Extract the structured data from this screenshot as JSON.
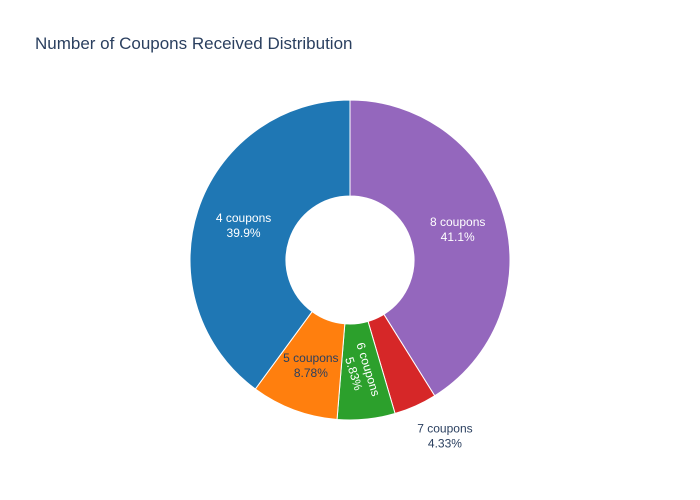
{
  "chart_data": {
    "type": "pie",
    "hole": 0.4,
    "title": "Number of Coupons Received Distribution",
    "direction": "clockwise",
    "slices": [
      {
        "label": "8 coupons",
        "value": 41.1,
        "pct_text": "41.1%",
        "color": "#9467bd",
        "label_position": "inside"
      },
      {
        "label": "7 coupons",
        "value": 4.33,
        "pct_text": "4.33%",
        "color": "#d62728",
        "label_position": "outside"
      },
      {
        "label": "6 coupons",
        "value": 5.83,
        "pct_text": "5.83%",
        "color": "#2ca02c",
        "label_position": "inside-radial"
      },
      {
        "label": "5 coupons",
        "value": 8.78,
        "pct_text": "8.78%",
        "color": "#ff7f0e",
        "label_position": "inside"
      },
      {
        "label": "4 coupons",
        "value": 39.9,
        "pct_text": "39.9%",
        "color": "#1f77b4",
        "label_position": "inside"
      }
    ]
  }
}
